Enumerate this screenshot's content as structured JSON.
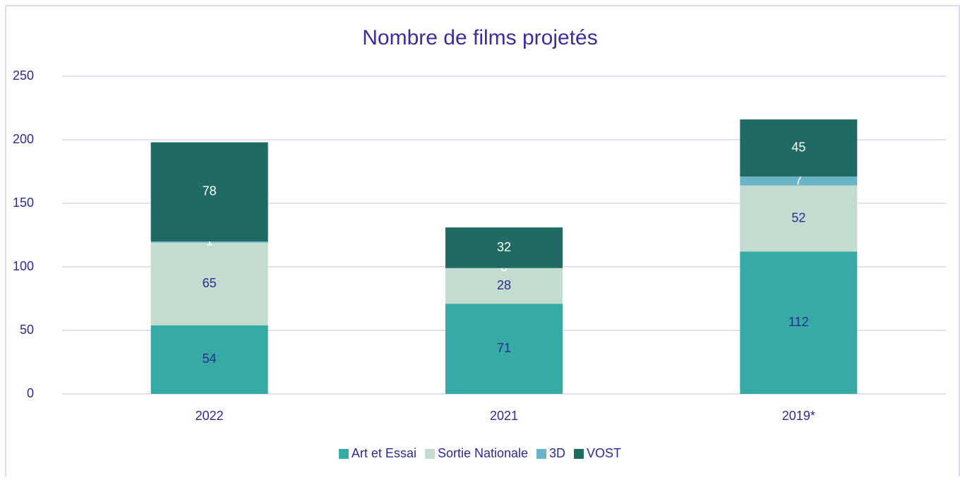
{
  "chart_data": {
    "type": "stacked_bar",
    "title": "Nombre de films projetés",
    "categories": [
      "2022",
      "2021",
      "2019*"
    ],
    "series": [
      {
        "name": "Art et Essai",
        "color": "#36aaa4",
        "label_color": "#2e2a8f",
        "values": [
          54,
          71,
          112
        ]
      },
      {
        "name": "Sortie Nationale",
        "color": "#c3dccf",
        "label_color": "#2e2a8f",
        "values": [
          65,
          28,
          52
        ]
      },
      {
        "name": "3D",
        "color": "#6ab4c8",
        "label_color": "#ffffff",
        "values": [
          1,
          0,
          7
        ]
      },
      {
        "name": "VOST",
        "color": "#1f6b63",
        "label_color": "#ffffff",
        "values": [
          78,
          32,
          45
        ]
      }
    ],
    "ylim": [
      0,
      250
    ],
    "yticks": [
      0,
      50,
      100,
      150,
      200,
      250
    ],
    "grid": true,
    "legend": "bottom"
  }
}
